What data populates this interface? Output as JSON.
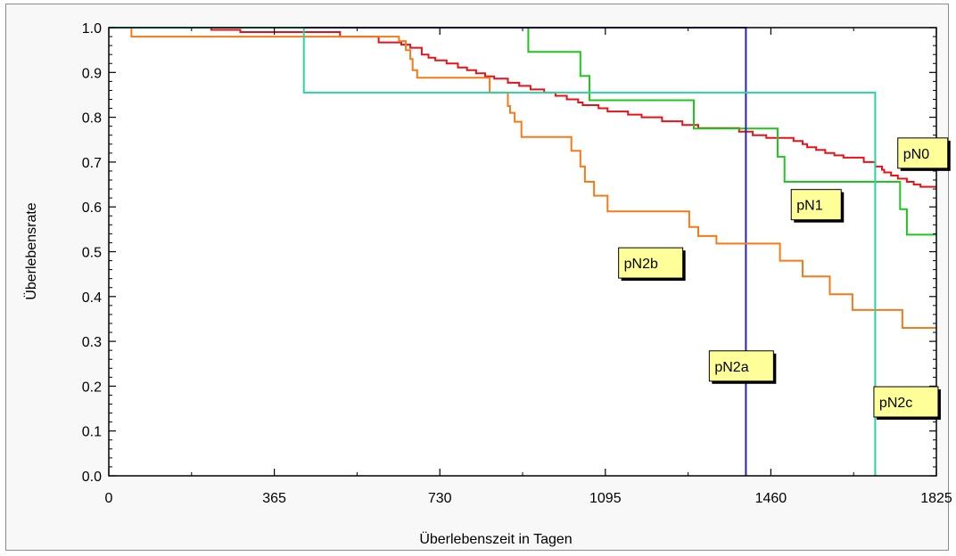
{
  "chart_data": {
    "type": "line",
    "title": "",
    "xlabel": "Überlebenszeit in Tagen",
    "ylabel": "Überlebensrate",
    "xlim": [
      0,
      1825
    ],
    "ylim": [
      0.0,
      1.0
    ],
    "xticks": [
      {
        "value": 0,
        "label": "0"
      },
      {
        "value": 365,
        "label": "365"
      },
      {
        "value": 730,
        "label": "730"
      },
      {
        "value": 1095,
        "label": "1095"
      },
      {
        "value": 1460,
        "label": "1460"
      },
      {
        "value": 1825,
        "label": "1825"
      }
    ],
    "yticks": [
      {
        "value": 0.0,
        "label": "0.0"
      },
      {
        "value": 0.1,
        "label": "0.1"
      },
      {
        "value": 0.2,
        "label": "0.2"
      },
      {
        "value": 0.3,
        "label": "0.3"
      },
      {
        "value": 0.4,
        "label": "0.4"
      },
      {
        "value": 0.5,
        "label": "0.5"
      },
      {
        "value": 0.6,
        "label": "0.6"
      },
      {
        "value": 0.7,
        "label": "0.7"
      },
      {
        "value": 0.8,
        "label": "0.8"
      },
      {
        "value": 0.9,
        "label": "0.9"
      },
      {
        "value": 1.0,
        "label": "1.0"
      }
    ],
    "grid": false,
    "series": [
      {
        "name": "pN0",
        "color": "#e8131a",
        "x": [
          0,
          226,
          290,
          510,
          595,
          645,
          665,
          690,
          705,
          720,
          745,
          770,
          790,
          810,
          830,
          850,
          880,
          905,
          930,
          960,
          985,
          1010,
          1035,
          1045,
          1080,
          1100,
          1145,
          1175,
          1220,
          1265,
          1300,
          1390,
          1420,
          1450,
          1510,
          1530,
          1540,
          1560,
          1580,
          1600,
          1620,
          1640,
          1665,
          1690,
          1705,
          1710,
          1725,
          1740,
          1760,
          1775,
          1790,
          1825
        ],
        "y": [
          1.0,
          0.995,
          0.99,
          0.98,
          0.967,
          0.962,
          0.955,
          0.94,
          0.933,
          0.927,
          0.92,
          0.911,
          0.905,
          0.898,
          0.891,
          0.886,
          0.877,
          0.87,
          0.862,
          0.855,
          0.848,
          0.84,
          0.833,
          0.827,
          0.82,
          0.813,
          0.806,
          0.8,
          0.791,
          0.783,
          0.776,
          0.768,
          0.76,
          0.754,
          0.747,
          0.74,
          0.733,
          0.727,
          0.72,
          0.715,
          0.71,
          0.71,
          0.7,
          0.69,
          0.683,
          0.677,
          0.67,
          0.663,
          0.656,
          0.65,
          0.645,
          0.645
        ]
      },
      {
        "name": "pN1",
        "color": "#1fc61f",
        "x": [
          0,
          925,
          1040,
          1060,
          1290,
          1475,
          1490,
          1510,
          1745,
          1760,
          1825
        ],
        "y": [
          1.0,
          0.946,
          0.892,
          0.838,
          0.775,
          0.712,
          0.656,
          0.656,
          0.595,
          0.538,
          0.538
        ]
      },
      {
        "name": "pN2a",
        "color": "#2a22b8",
        "x": [
          0,
          1405,
          1405
        ],
        "y": [
          1.0,
          1.0,
          0.0
        ]
      },
      {
        "name": "pN2b",
        "color": "#f77a19",
        "x": [
          0,
          50,
          640,
          655,
          665,
          670,
          680,
          840,
          880,
          885,
          895,
          910,
          1020,
          1040,
          1050,
          1070,
          1100,
          1280,
          1300,
          1340,
          1410,
          1480,
          1530,
          1590,
          1640,
          1680,
          1750,
          1825
        ],
        "y": [
          1.0,
          0.98,
          0.97,
          0.95,
          0.93,
          0.905,
          0.888,
          0.855,
          0.825,
          0.81,
          0.79,
          0.756,
          0.725,
          0.69,
          0.656,
          0.625,
          0.59,
          0.555,
          0.535,
          0.518,
          0.518,
          0.48,
          0.445,
          0.405,
          0.37,
          0.37,
          0.33,
          0.33
        ]
      },
      {
        "name": "pN2c",
        "color": "#2ed2a0",
        "x": [
          0,
          430,
          1690,
          1690
        ],
        "y": [
          1.0,
          0.855,
          0.855,
          0.0
        ]
      }
    ],
    "annotations": [
      {
        "label": "pN0",
        "x": 1795,
        "y": 0.72
      },
      {
        "label": "pN1",
        "x": 1560,
        "y": 0.605
      },
      {
        "label": "pN2b",
        "x": 1195,
        "y": 0.475
      },
      {
        "label": "pN2a",
        "x": 1395,
        "y": 0.245
      },
      {
        "label": "pN2c",
        "x": 1758,
        "y": 0.165
      }
    ]
  }
}
